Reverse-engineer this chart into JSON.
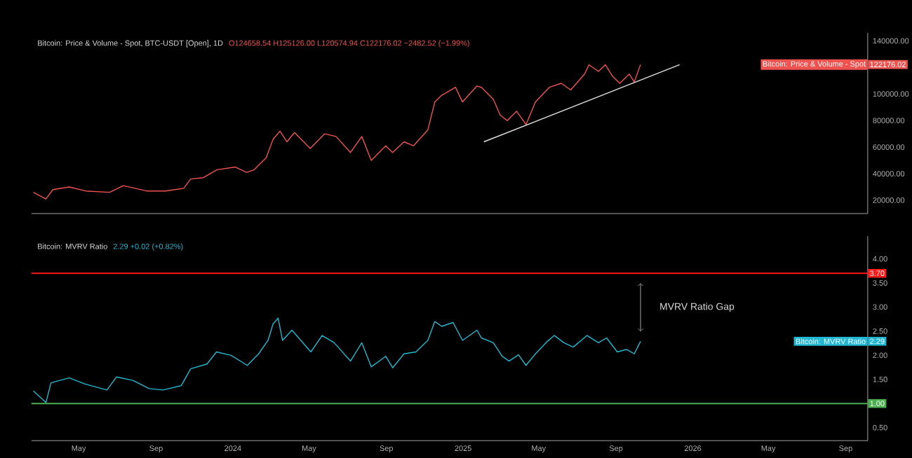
{
  "chart_data": [
    {
      "type": "line",
      "title": "Bitcoin: Price & Volume - Spot, BTC-USDT [Open], 1D",
      "subtitle": "O124658.54 H125126.00 L120574.94 C122176.02 −2482.52 (−1.99%)",
      "xlim": [
        "2023-02-15",
        "2026-10-06"
      ],
      "ylim": [
        10000,
        146000
      ],
      "tick_labels": "y",
      "yticks": [
        {
          "value": 20000,
          "label": "20000.00"
        },
        {
          "value": 40000,
          "label": "40000.00"
        },
        {
          "value": 60000,
          "label": "60000.00"
        },
        {
          "value": 80000,
          "label": "80000.00"
        },
        {
          "value": 100000,
          "label": "100000.00"
        },
        {
          "value": 140000,
          "label": "140000.00"
        }
      ],
      "x": [
        "2023-02-18",
        "2023-03-10",
        "2023-03-21",
        "2023-04-16",
        "2023-05-12",
        "2023-06-19",
        "2023-07-11",
        "2023-08-17",
        "2023-09-16",
        "2023-10-15",
        "2023-10-26",
        "2023-11-15",
        "2023-12-07",
        "2024-01-05",
        "2024-01-23",
        "2024-02-04",
        "2024-02-23",
        "2024-03-05",
        "2024-03-16",
        "2024-03-27",
        "2024-04-08",
        "2024-05-03",
        "2024-05-26",
        "2024-06-13",
        "2024-07-06",
        "2024-07-24",
        "2024-08-08",
        "2024-08-31",
        "2024-09-11",
        "2024-09-29",
        "2024-10-14",
        "2024-11-06",
        "2024-11-17",
        "2024-11-28",
        "2024-12-20",
        "2024-12-31",
        "2025-01-23",
        "2025-01-30",
        "2025-02-18",
        "2025-03-01",
        "2025-03-12",
        "2025-03-27",
        "2025-04-11",
        "2025-04-26",
        "2025-05-18",
        "2025-06-06",
        "2025-06-21",
        "2025-07-13",
        "2025-07-20",
        "2025-08-04",
        "2025-08-15",
        "2025-08-27",
        "2025-09-07",
        "2025-09-22",
        "2025-09-30",
        "2025-10-10"
      ],
      "series": [
        {
          "name": "Bitcoin: Price & Volume - Spot",
          "color": "#ef5350",
          "values": [
            26000,
            21000,
            28000,
            30000,
            27000,
            26000,
            31000,
            27000,
            27000,
            29000,
            36000,
            37000,
            43000,
            45000,
            41000,
            43000,
            52000,
            66000,
            72000,
            64000,
            71000,
            59000,
            70000,
            68000,
            56000,
            68000,
            50000,
            61000,
            56000,
            64000,
            61000,
            73000,
            94000,
            99000,
            105000,
            94000,
            106000,
            105000,
            96000,
            84000,
            80000,
            87000,
            77000,
            94000,
            105000,
            108000,
            103000,
            115000,
            122000,
            117000,
            122000,
            113000,
            108000,
            115000,
            109000,
            122176.02
          ]
        },
        {
          "type": "line",
          "color": "#e0e0e0",
          "x": [
            "2025-02-03",
            "2025-12-11"
          ],
          "values": [
            64000,
            122000
          ]
        }
      ],
      "annotations": [
        "122176.02"
      ]
    },
    {
      "type": "line",
      "title": "Bitcoin: MVRV Ratio",
      "subtitle": "2.29 +0.02 (+0.82%)",
      "xlim": [
        "2023-02-15",
        "2026-10-06"
      ],
      "ylim": [
        0.23,
        4.47
      ],
      "xticks": [
        {
          "value": "2023-05-01",
          "label": "May"
        },
        {
          "value": "2023-09-01",
          "label": "Sep"
        },
        {
          "value": "2024-01-01",
          "label": "2024"
        },
        {
          "value": "2024-05-01",
          "label": "May"
        },
        {
          "value": "2024-09-01",
          "label": "Sep"
        },
        {
          "value": "2025-01-01",
          "label": "2025"
        },
        {
          "value": "2025-05-01",
          "label": "May"
        },
        {
          "value": "2025-09-01",
          "label": "Sep"
        },
        {
          "value": "2026-01-01",
          "label": "2026"
        },
        {
          "value": "2026-05-01",
          "label": "May"
        },
        {
          "value": "2026-09-01",
          "label": "Sep"
        }
      ],
      "yticks": [
        {
          "value": 0.5,
          "label": "0.50"
        },
        {
          "value": 1.5,
          "label": "1.50"
        },
        {
          "value": 2,
          "label": "2.00"
        },
        {
          "value": 2.5,
          "label": "2.50"
        },
        {
          "value": 3,
          "label": "3.00"
        },
        {
          "value": 3.5,
          "label": "3.50"
        },
        {
          "value": 4,
          "label": "4.00"
        }
      ],
      "x": [
        "2023-02-18",
        "2023-03-10",
        "2023-03-18",
        "2023-04-16",
        "2023-05-12",
        "2023-06-15",
        "2023-06-30",
        "2023-07-26",
        "2023-08-21",
        "2023-09-12",
        "2023-10-11",
        "2023-10-26",
        "2023-11-21",
        "2023-12-06",
        "2023-12-29",
        "2024-01-24",
        "2024-02-11",
        "2024-02-26",
        "2024-03-05",
        "2024-03-13",
        "2024-03-20",
        "2024-04-04",
        "2024-05-04",
        "2024-05-22",
        "2024-06-10",
        "2024-07-06",
        "2024-07-24",
        "2024-08-08",
        "2024-08-31",
        "2024-09-11",
        "2024-09-29",
        "2024-10-18",
        "2024-11-06",
        "2024-11-17",
        "2024-11-28",
        "2024-12-16",
        "2024-12-31",
        "2025-01-23",
        "2025-01-30",
        "2025-02-18",
        "2025-03-04",
        "2025-03-15",
        "2025-03-30",
        "2025-04-11",
        "2025-04-26",
        "2025-05-15",
        "2025-05-26",
        "2025-06-10",
        "2025-06-25",
        "2025-07-17",
        "2025-08-04",
        "2025-08-17",
        "2025-09-03",
        "2025-09-18",
        "2025-09-30",
        "2025-10-10"
      ],
      "series": [
        {
          "name": "Bitcoin: MVRV Ratio",
          "color": "#22b8d4",
          "values": [
            1.26,
            1.02,
            1.43,
            1.53,
            1.4,
            1.28,
            1.55,
            1.48,
            1.31,
            1.28,
            1.37,
            1.72,
            1.82,
            2.07,
            2.0,
            1.79,
            2.03,
            2.31,
            2.65,
            2.77,
            2.31,
            2.52,
            2.07,
            2.41,
            2.26,
            1.88,
            2.26,
            1.76,
            1.98,
            1.74,
            2.03,
            2.07,
            2.31,
            2.7,
            2.6,
            2.68,
            2.31,
            2.52,
            2.36,
            2.26,
            1.98,
            1.88,
            2.01,
            1.79,
            2.03,
            2.29,
            2.41,
            2.26,
            2.17,
            2.41,
            2.26,
            2.36,
            2.07,
            2.12,
            2.03,
            2.29
          ]
        }
      ],
      "ref_lines": [
        {
          "axis": "y",
          "value": 3.7,
          "label": "3.70",
          "color": "#ff1a1a"
        },
        {
          "axis": "y",
          "value": 1,
          "label": "1.00",
          "color": "#4caf50"
        }
      ],
      "annotations": [
        "2.29",
        "MVRV Ratio Gap"
      ]
    }
  ]
}
